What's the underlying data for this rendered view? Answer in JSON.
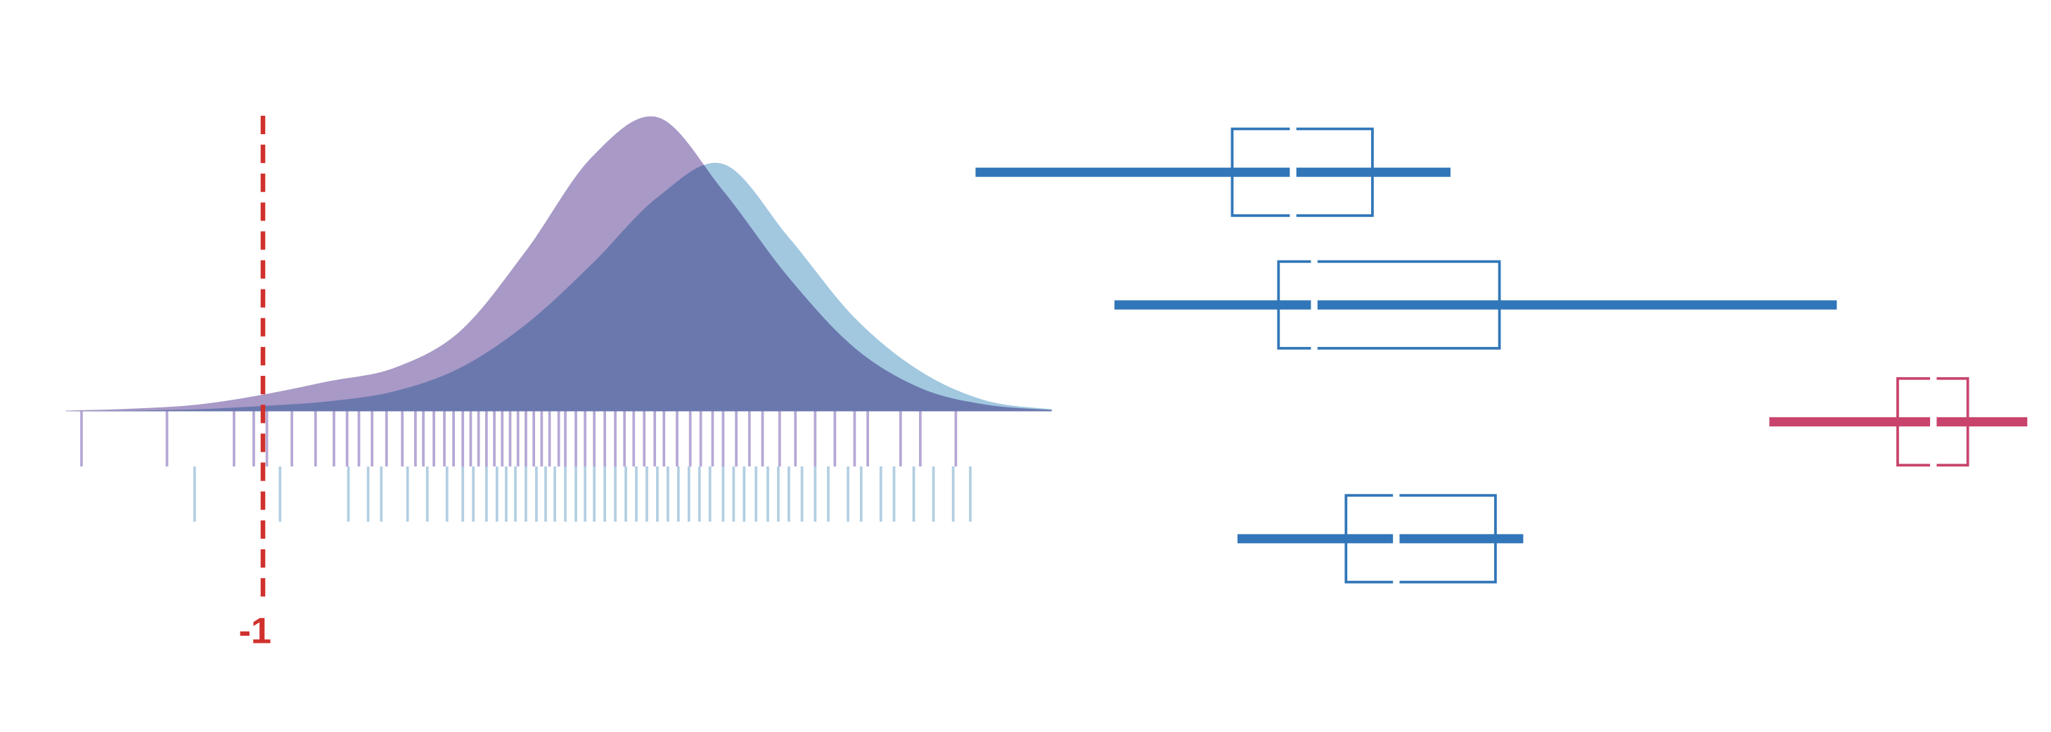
{
  "chart_data": [
    {
      "type": "density",
      "xlim": [
        -2.5,
        5.0
      ],
      "ylim": [
        0,
        0.45
      ],
      "x": [
        -2.5,
        -2.0,
        -1.5,
        -1.0,
        -0.5,
        0,
        0.5,
        1.0,
        1.5,
        2.0,
        2.5,
        3.0,
        3.5,
        4.0,
        4.5,
        5.0
      ],
      "series": [
        {
          "color": "#a899c6",
          "rug_color": "#b6a8d6",
          "values": [
            0.001,
            0.004,
            0.01,
            0.025,
            0.045,
            0.065,
            0.12,
            0.24,
            0.38,
            0.44,
            0.33,
            0.2,
            0.095,
            0.035,
            0.01,
            0.002
          ],
          "rug": [
            -2.38,
            -1.73,
            -1.22,
            -1.07,
            -0.97,
            -0.78,
            -0.6,
            -0.46,
            -0.36,
            -0.27,
            -0.17,
            -0.06,
            0.06,
            0.16,
            0.22,
            0.3,
            0.38,
            0.45,
            0.52,
            0.58,
            0.64,
            0.7,
            0.76,
            0.82,
            0.88,
            0.94,
            1.0,
            1.06,
            1.12,
            1.18,
            1.25,
            1.3,
            1.38,
            1.45,
            1.52,
            1.6,
            1.68,
            1.75,
            1.82,
            1.9,
            1.98,
            2.05,
            2.15,
            2.25,
            2.33,
            2.42,
            2.5,
            2.6,
            2.7,
            2.8,
            2.93,
            3.05,
            3.2,
            3.35,
            3.5,
            3.6,
            3.85,
            4.0,
            4.27
          ]
        },
        {
          "color": "#a2c8e0",
          "rug_color": "#b3cfe2",
          "values": [
            0,
            0.001,
            0.003,
            0.008,
            0.015,
            0.03,
            0.065,
            0.13,
            0.22,
            0.32,
            0.37,
            0.26,
            0.14,
            0.06,
            0.016,
            0.003
          ],
          "rug": [
            -1.52,
            -0.87,
            -0.35,
            -0.2,
            -0.1,
            0.1,
            0.25,
            0.4,
            0.52,
            0.6,
            0.7,
            0.78,
            0.85,
            0.92,
            1.0,
            1.08,
            1.15,
            1.22,
            1.3,
            1.38,
            1.45,
            1.52,
            1.6,
            1.68,
            1.76,
            1.84,
            1.92,
            2.0,
            2.08,
            2.16,
            2.24,
            2.32,
            2.4,
            2.5,
            2.58,
            2.66,
            2.75,
            2.84,
            2.92,
            3.0,
            3.1,
            3.2,
            3.3,
            3.45,
            3.55,
            3.7,
            3.8,
            3.95,
            4.1,
            4.25,
            4.38
          ]
        }
      ],
      "reference_line": {
        "value": -1,
        "color": "#d0312d"
      }
    },
    {
      "type": "box",
      "xlim": [
        0,
        8
      ],
      "boxes": [
        {
          "color": "#3176b8",
          "whislo": 0.02,
          "q1": 1.96,
          "med": 2.42,
          "q3": 3.02,
          "whishi": 3.61
        },
        {
          "color": "#3176b8",
          "whislo": 1.07,
          "q1": 2.31,
          "med": 2.58,
          "q3": 3.98,
          "whishi": 6.53
        },
        {
          "color": "#c8446c",
          "whislo": 6.02,
          "q1": 6.99,
          "med": 7.26,
          "q3": 7.52,
          "whishi": 7.97
        },
        {
          "color": "#3176b8",
          "whislo": 2.0,
          "q1": 2.82,
          "med": 3.2,
          "q3": 3.95,
          "whishi": 4.16
        }
      ]
    }
  ]
}
